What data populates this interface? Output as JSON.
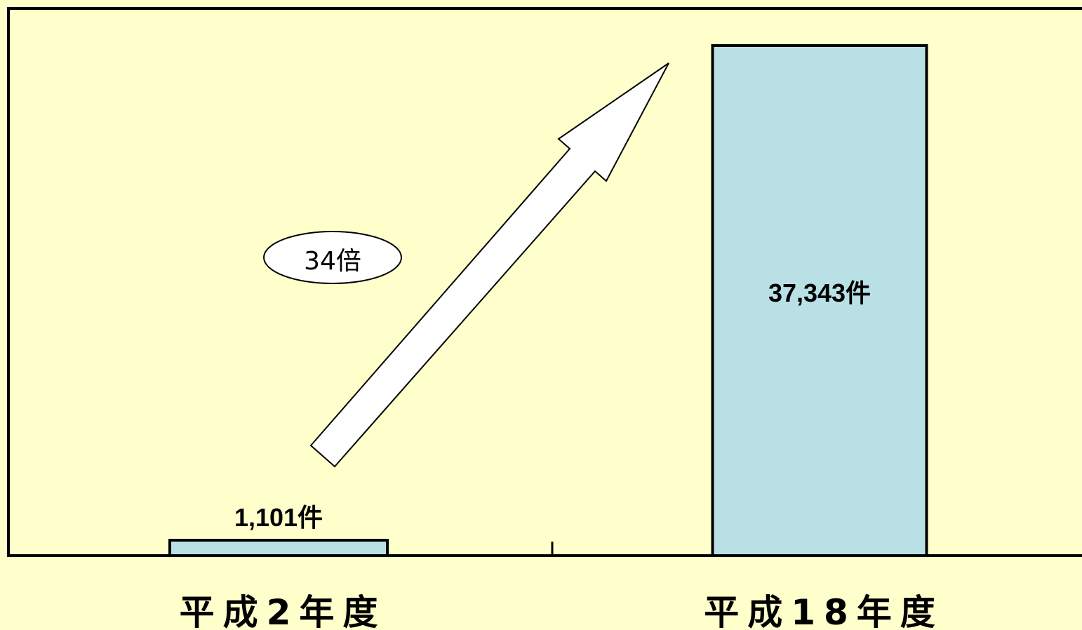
{
  "chart_data": {
    "type": "bar",
    "categories": [
      "平成2年度",
      "平成18年度"
    ],
    "values": [
      1101,
      37343
    ],
    "value_labels": [
      "1,101件",
      "37,343件"
    ],
    "ylim": [
      0,
      40000
    ],
    "grid": false,
    "annotation": "34倍",
    "colors": {
      "bar": "#b9e0e4",
      "background": "#ffffcc",
      "arrow": "#ffffff"
    }
  }
}
